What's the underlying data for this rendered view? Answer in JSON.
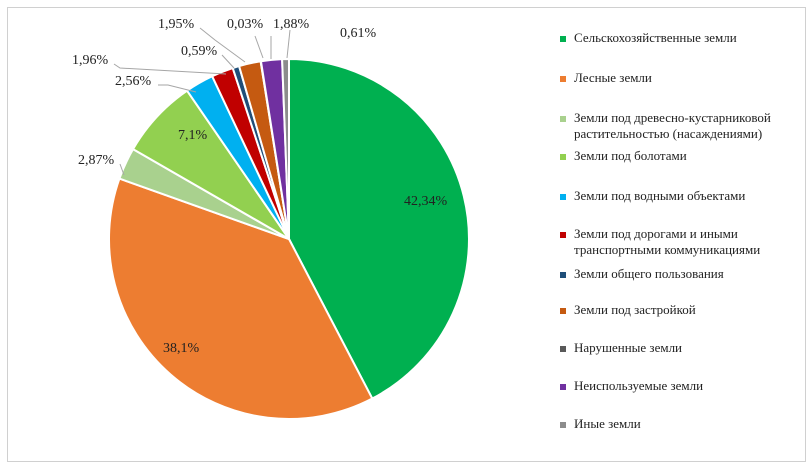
{
  "chart_data": {
    "type": "pie",
    "title": "",
    "legend_position": "right",
    "series": [
      {
        "name": "Сельскохозяйственные земли",
        "value": 42.34,
        "label": "42,34%",
        "color": "#00b050"
      },
      {
        "name": "Лесные земли",
        "value": 38.1,
        "label": "38,1%",
        "color": "#ed7d31"
      },
      {
        "name": "Земли под древесно-кустарниковой\nрастительностью (насаждениями)",
        "value": 2.87,
        "label": "2,87%",
        "color": "#a9d18e"
      },
      {
        "name": "Земли под болотами",
        "value": 7.1,
        "label": "7,1%",
        "color": "#92d050"
      },
      {
        "name": "Земли под водными объектами",
        "value": 2.56,
        "label": "2,56%",
        "color": "#00b0f0"
      },
      {
        "name": "Земли под дорогами и иными\nтранспортными  коммуникациями",
        "value": 1.96,
        "label": "1,96%",
        "color": "#c00000"
      },
      {
        "name": "Земли общего пользования",
        "value": 0.59,
        "label": "0,59%",
        "color": "#1f4e79"
      },
      {
        "name": "Земли под застройкой",
        "value": 1.95,
        "label": "1,95%",
        "color": "#c55a11"
      },
      {
        "name": "Нарушенные земли",
        "value": 0.03,
        "label": "0,03%",
        "color": "#595959"
      },
      {
        "name": "Неиспользуемые земли",
        "value": 1.88,
        "label": "1,88%",
        "color": "#7030a0"
      },
      {
        "name": "Иные земли",
        "value": 0.61,
        "label": "0,61%",
        "color": "#8c8c8c"
      }
    ]
  }
}
